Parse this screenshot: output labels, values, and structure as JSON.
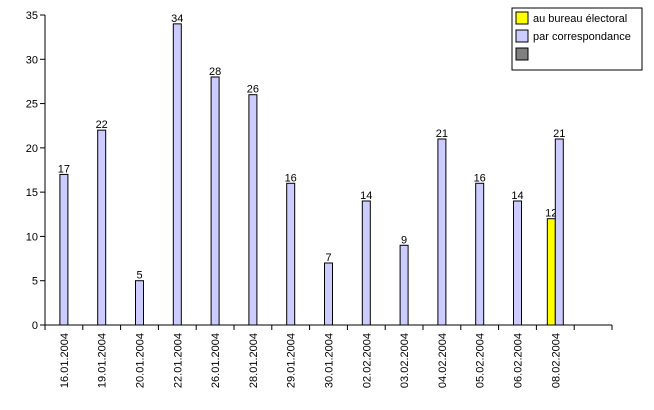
{
  "chart_data": {
    "type": "bar",
    "categories": [
      "16.01.2004",
      "19.01.2004",
      "20.01.2004",
      "22.01.2004",
      "26.01.2004",
      "28.01.2004",
      "29.01.2004",
      "30.01.2004",
      "02.02.2004",
      "03.02.2004",
      "04.02.2004",
      "05.02.2004",
      "06.02.2004",
      "08.02.2004",
      null
    ],
    "series": [
      {
        "name": "au bureau électoral",
        "color": "#ffff00",
        "values": [
          null,
          null,
          null,
          null,
          null,
          null,
          null,
          null,
          null,
          null,
          null,
          null,
          null,
          12,
          null
        ]
      },
      {
        "name": "par correspondance",
        "color": "#ccccff",
        "values": [
          17,
          22,
          5,
          34,
          28,
          26,
          16,
          7,
          14,
          9,
          21,
          16,
          14,
          21,
          null
        ]
      },
      {
        "color": "#808080",
        "values": [
          null,
          null,
          null,
          null,
          null,
          null,
          null,
          null,
          null,
          null,
          null,
          null,
          null,
          null,
          null
        ]
      }
    ],
    "ylim": [
      0,
      35
    ],
    "yticks": [
      0,
      5,
      10,
      15,
      20,
      25,
      30,
      35
    ],
    "legend": "top-right"
  }
}
